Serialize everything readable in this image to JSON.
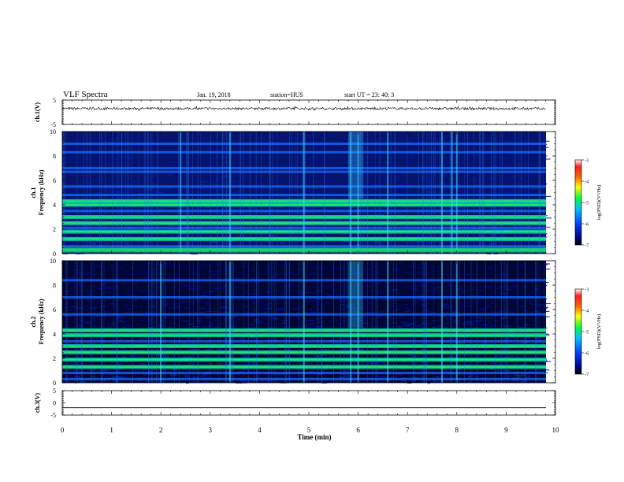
{
  "header": {
    "title": "VLF Spectra",
    "date": "Jan. 19, 2018",
    "station": "station=HUS",
    "start": "start UT =  23: 40: 3"
  },
  "colors": {
    "spectrogram_background": "#000050",
    "trace": "#000000"
  },
  "chart_data": [
    {
      "type": "line",
      "ylabel": "ch.1(V)",
      "ylim": [
        -5,
        5
      ],
      "yticks": [
        "5",
        "-5"
      ],
      "xlim": [
        0,
        10
      ],
      "description_series": "noisy waveform centred near +1.5 V with amplitude about ±0.5 V",
      "baseline": 1.5
    },
    {
      "type": "heatmap",
      "ylabel": [
        "ch.1",
        "Frequency (kHz)"
      ],
      "ylim": [
        0,
        10
      ],
      "yticks": [
        "0",
        "2",
        "4",
        "6",
        "8",
        "10"
      ],
      "xlim": [
        0,
        9.85
      ],
      "colorbar": {
        "label": "log(PSD)(V²/Hz)",
        "range": [
          -7,
          -3
        ],
        "ticks": [
          "-3",
          "-4",
          "-5",
          "-6",
          "-7"
        ]
      },
      "bands_khz": [
        0.3,
        0.6,
        1.2,
        1.8,
        2.1,
        2.5,
        3.0,
        3.5,
        4.0,
        4.3,
        4.8,
        5.5,
        6.7,
        7.0,
        8.3,
        9.0
      ],
      "bright_bands_khz": [
        0.3,
        1.2,
        1.8,
        2.5,
        3.0,
        4.0,
        4.3
      ],
      "impulsive_noise_minutes": [
        2.4,
        3.4,
        4.9,
        5.85,
        6.0,
        6.6,
        7.7,
        7.9,
        8.0
      ]
    },
    {
      "type": "heatmap",
      "ylabel": [
        "ch.2",
        "Frequency (kHz)"
      ],
      "ylim": [
        0,
        10
      ],
      "yticks": [
        "0",
        "2",
        "4",
        "6",
        "8",
        "10"
      ],
      "xlim": [
        0,
        9.85
      ],
      "colorbar": {
        "label": "log(PSD)(V²/Hz)",
        "range": [
          -7,
          -3
        ],
        "ticks": [
          "-3",
          "-4",
          "-5",
          "-6",
          "-7"
        ]
      },
      "bands_khz": [
        0.3,
        0.8,
        1.3,
        1.9,
        2.5,
        3.0,
        3.4,
        3.9,
        4.3,
        5.6,
        7.0,
        8.4
      ],
      "bright_bands_khz": [
        1.3,
        1.9,
        2.5,
        3.0,
        3.9,
        4.3
      ],
      "impulsive_noise_minutes": [
        2.0,
        3.4,
        4.9,
        5.85,
        6.0,
        6.6,
        7.7,
        8.0
      ]
    },
    {
      "type": "line",
      "ylabel": "ch.3(V)",
      "ylim": [
        -5,
        5
      ],
      "yticks": [
        "5",
        "0",
        "-5"
      ],
      "xlim": [
        0,
        10
      ],
      "baseline": -2.0
    }
  ],
  "xaxis": {
    "label": "Time (min)",
    "ticks": [
      "0",
      "1",
      "2",
      "3",
      "4",
      "5",
      "6",
      "7",
      "8",
      "9",
      "10"
    ],
    "range": [
      0,
      10
    ]
  }
}
